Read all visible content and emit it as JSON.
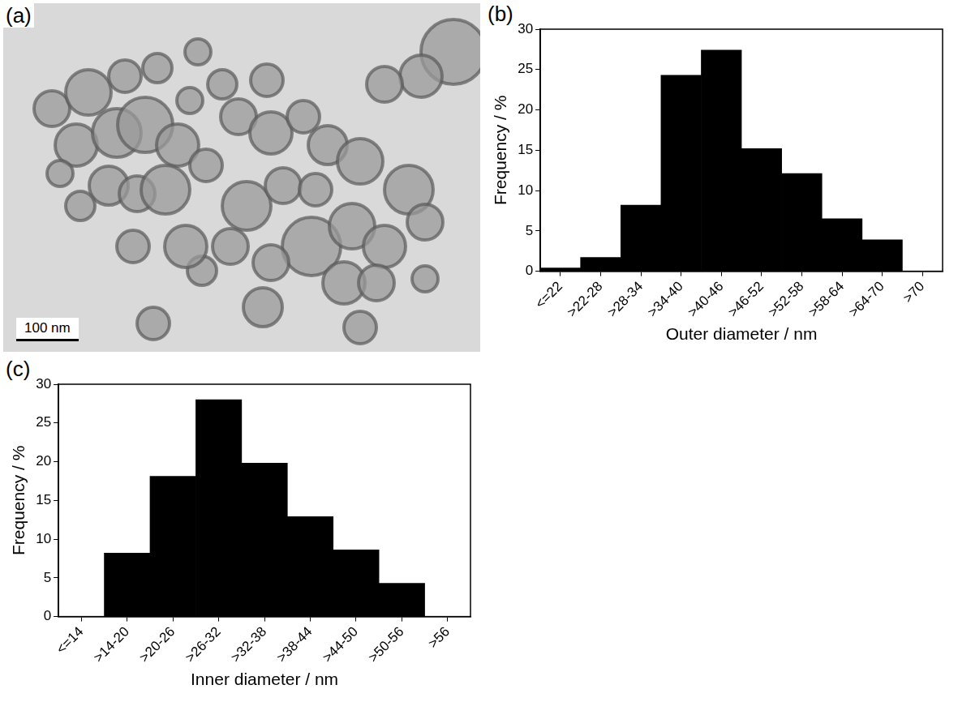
{
  "image_panel": {
    "label": "(a)",
    "scale_bar": "100 nm"
  },
  "chart_data": [
    {
      "type": "bar",
      "title": "(b)",
      "xlabel": "Outer diameter / nm",
      "ylabel": "Frequency / %",
      "categories": [
        "<=22",
        ">22-28",
        ">28-34",
        ">34-40",
        ">40-46",
        ">46-52",
        ">52-58",
        ">58-64",
        ">64-70",
        ">70"
      ],
      "values": [
        0.4,
        1.7,
        8.2,
        24.3,
        27.4,
        15.2,
        12.1,
        6.5,
        3.9,
        0
      ],
      "color": "#000000",
      "ylim": [
        0,
        30
      ],
      "yticks": [
        0,
        5,
        10,
        15,
        20,
        25,
        30
      ],
      "grid": false
    },
    {
      "type": "bar",
      "title": "(c)",
      "xlabel": "Inner diameter / nm",
      "ylabel": "Frequency / %",
      "categories": [
        "<=14",
        ">14-20",
        ">20-26",
        ">26-32",
        ">32-38",
        ">38-44",
        ">44-50",
        ">50-56",
        ">56"
      ],
      "values": [
        0,
        8.2,
        18.1,
        28.0,
        19.8,
        12.9,
        8.6,
        4.3,
        0
      ],
      "color": "#000000",
      "ylim": [
        0,
        30
      ],
      "yticks": [
        0,
        5,
        10,
        15,
        20,
        25,
        30
      ],
      "grid": false
    }
  ]
}
